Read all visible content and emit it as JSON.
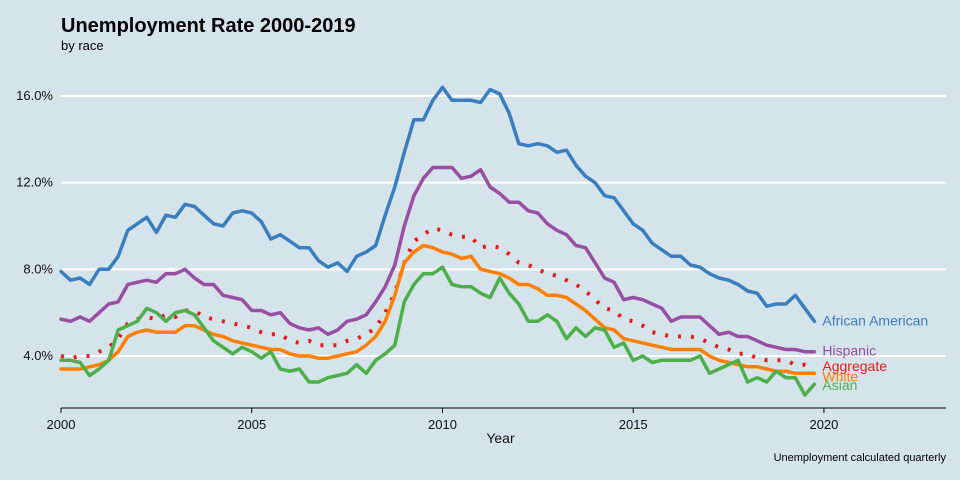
{
  "chart_data": {
    "type": "line",
    "title": "Unemployment Rate 2000-2019",
    "subtitle": "by race",
    "caption": "Unemployment calculated quarterly",
    "xlabel": "Year",
    "ylabel": "",
    "xlim": [
      2000,
      2023.2
    ],
    "ylim": [
      1.6,
      17.2
    ],
    "x_ticks": [
      2000,
      2005,
      2010,
      2015,
      2020
    ],
    "x_tick_labels": [
      "2000",
      "2005",
      "2010",
      "2015",
      "2020"
    ],
    "y_ticks": [
      4,
      8,
      12,
      16
    ],
    "y_tick_labels": [
      "4.0%",
      "8.0%",
      "12.0%",
      "16.0%"
    ],
    "grid": "horizontal",
    "legend": "direct labels at right end of lines",
    "series": [
      {
        "name": "African American",
        "color": "#3a7ebf",
        "style": "solid",
        "x": [
          2000.0,
          2000.25,
          2000.5,
          2000.75,
          2001.0,
          2001.25,
          2001.5,
          2001.75,
          2002.0,
          2002.25,
          2002.5,
          2002.75,
          2003.0,
          2003.25,
          2003.5,
          2003.75,
          2004.0,
          2004.25,
          2004.5,
          2004.75,
          2005.0,
          2005.25,
          2005.5,
          2005.75,
          2006.0,
          2006.25,
          2006.5,
          2006.75,
          2007.0,
          2007.25,
          2007.5,
          2007.75,
          2008.0,
          2008.25,
          2008.5,
          2008.75,
          2009.0,
          2009.25,
          2009.5,
          2009.75,
          2010.0,
          2010.25,
          2010.5,
          2010.75,
          2011.0,
          2011.25,
          2011.5,
          2011.75,
          2012.0,
          2012.25,
          2012.5,
          2012.75,
          2013.0,
          2013.25,
          2013.5,
          2013.75,
          2014.0,
          2014.25,
          2014.5,
          2014.75,
          2015.0,
          2015.25,
          2015.5,
          2015.75,
          2016.0,
          2016.25,
          2016.5,
          2016.75,
          2017.0,
          2017.25,
          2017.5,
          2017.75,
          2018.0,
          2018.25,
          2018.5,
          2018.75,
          2019.0,
          2019.25,
          2019.5,
          2019.75
        ],
        "y": [
          7.9,
          7.5,
          7.6,
          7.3,
          8.0,
          8.0,
          8.6,
          9.8,
          10.1,
          10.4,
          9.7,
          10.5,
          10.4,
          11.0,
          10.9,
          10.5,
          10.1,
          10.0,
          10.6,
          10.7,
          10.6,
          10.2,
          9.4,
          9.6,
          9.3,
          9.0,
          9.0,
          8.4,
          8.1,
          8.3,
          7.9,
          8.6,
          8.8,
          9.1,
          10.5,
          11.8,
          13.4,
          14.9,
          14.9,
          15.8,
          16.4,
          15.8,
          15.8,
          15.8,
          15.7,
          16.3,
          16.1,
          15.2,
          13.8,
          13.7,
          13.8,
          13.7,
          13.4,
          13.5,
          12.8,
          12.3,
          12.0,
          11.4,
          11.3,
          10.7,
          10.1,
          9.8,
          9.2,
          8.9,
          8.6,
          8.6,
          8.2,
          8.1,
          7.8,
          7.6,
          7.5,
          7.3,
          7.0,
          6.9,
          6.3,
          6.4,
          6.4,
          6.8,
          6.2,
          5.6
        ]
      },
      {
        "name": "Hispanic",
        "color": "#984ea3",
        "style": "solid",
        "x": [
          2000.0,
          2000.25,
          2000.5,
          2000.75,
          2001.0,
          2001.25,
          2001.5,
          2001.75,
          2002.0,
          2002.25,
          2002.5,
          2002.75,
          2003.0,
          2003.25,
          2003.5,
          2003.75,
          2004.0,
          2004.25,
          2004.5,
          2004.75,
          2005.0,
          2005.25,
          2005.5,
          2005.75,
          2006.0,
          2006.25,
          2006.5,
          2006.75,
          2007.0,
          2007.25,
          2007.5,
          2007.75,
          2008.0,
          2008.25,
          2008.5,
          2008.75,
          2009.0,
          2009.25,
          2009.5,
          2009.75,
          2010.0,
          2010.25,
          2010.5,
          2010.75,
          2011.0,
          2011.25,
          2011.5,
          2011.75,
          2012.0,
          2012.25,
          2012.5,
          2012.75,
          2013.0,
          2013.25,
          2013.5,
          2013.75,
          2014.0,
          2014.25,
          2014.5,
          2014.75,
          2015.0,
          2015.25,
          2015.5,
          2015.75,
          2016.0,
          2016.25,
          2016.5,
          2016.75,
          2017.0,
          2017.25,
          2017.5,
          2017.75,
          2018.0,
          2018.25,
          2018.5,
          2018.75,
          2019.0,
          2019.25,
          2019.5,
          2019.75
        ],
        "y": [
          5.7,
          5.6,
          5.8,
          5.6,
          6.0,
          6.4,
          6.5,
          7.3,
          7.4,
          7.5,
          7.4,
          7.8,
          7.8,
          8.0,
          7.6,
          7.3,
          7.3,
          6.8,
          6.7,
          6.6,
          6.1,
          6.1,
          5.9,
          6.0,
          5.5,
          5.3,
          5.2,
          5.3,
          5.0,
          5.2,
          5.6,
          5.7,
          5.9,
          6.5,
          7.2,
          8.2,
          10.0,
          11.4,
          12.2,
          12.7,
          12.7,
          12.7,
          12.2,
          12.3,
          12.6,
          11.8,
          11.5,
          11.1,
          11.1,
          10.7,
          10.6,
          10.1,
          9.8,
          9.6,
          9.1,
          9.0,
          8.3,
          7.6,
          7.4,
          6.6,
          6.7,
          6.6,
          6.4,
          6.2,
          5.6,
          5.8,
          5.8,
          5.8,
          5.4,
          5.0,
          5.1,
          4.9,
          4.9,
          4.7,
          4.5,
          4.4,
          4.3,
          4.3,
          4.2,
          4.2
        ]
      },
      {
        "name": "Aggregate",
        "color": "#e41a1c",
        "style": "dotted",
        "x": [
          2000.0,
          2000.25,
          2000.5,
          2000.75,
          2001.0,
          2001.25,
          2001.5,
          2001.75,
          2002.0,
          2002.25,
          2002.5,
          2002.75,
          2003.0,
          2003.25,
          2003.5,
          2003.75,
          2004.0,
          2004.25,
          2004.5,
          2004.75,
          2005.0,
          2005.25,
          2005.5,
          2005.75,
          2006.0,
          2006.25,
          2006.5,
          2006.75,
          2007.0,
          2007.25,
          2007.5,
          2007.75,
          2008.0,
          2008.25,
          2008.5,
          2008.75,
          2009.0,
          2009.25,
          2009.5,
          2009.75,
          2010.0,
          2010.25,
          2010.5,
          2010.75,
          2011.0,
          2011.25,
          2011.5,
          2011.75,
          2012.0,
          2012.25,
          2012.5,
          2012.75,
          2013.0,
          2013.25,
          2013.5,
          2013.75,
          2014.0,
          2014.25,
          2014.5,
          2014.75,
          2015.0,
          2015.25,
          2015.5,
          2015.75,
          2016.0,
          2016.25,
          2016.5,
          2016.75,
          2017.0,
          2017.25,
          2017.5,
          2017.75,
          2018.0,
          2018.25,
          2018.5,
          2018.75,
          2019.0,
          2019.25,
          2019.5,
          2019.75
        ],
        "y": [
          4.0,
          3.9,
          4.0,
          4.0,
          4.2,
          4.4,
          4.8,
          5.5,
          5.7,
          5.8,
          5.7,
          5.9,
          5.8,
          6.1,
          6.1,
          5.8,
          5.7,
          5.6,
          5.5,
          5.4,
          5.3,
          5.1,
          5.0,
          5.0,
          4.7,
          4.6,
          4.7,
          4.5,
          4.5,
          4.5,
          4.7,
          4.8,
          5.0,
          5.3,
          6.0,
          6.9,
          8.3,
          9.3,
          9.6,
          9.9,
          9.8,
          9.6,
          9.5,
          9.5,
          9.0,
          9.1,
          9.0,
          8.7,
          8.3,
          8.2,
          8.0,
          7.8,
          7.7,
          7.5,
          7.3,
          7.0,
          6.6,
          6.2,
          6.1,
          5.7,
          5.6,
          5.4,
          5.1,
          5.0,
          4.9,
          4.9,
          4.9,
          4.8,
          4.6,
          4.4,
          4.3,
          4.1,
          4.1,
          3.9,
          3.8,
          3.8,
          3.8,
          3.6,
          3.6,
          3.5
        ]
      },
      {
        "name": "White",
        "color": "#ff7f00",
        "style": "solid",
        "x": [
          2000.0,
          2000.25,
          2000.5,
          2000.75,
          2001.0,
          2001.25,
          2001.5,
          2001.75,
          2002.0,
          2002.25,
          2002.5,
          2002.75,
          2003.0,
          2003.25,
          2003.5,
          2003.75,
          2004.0,
          2004.25,
          2004.5,
          2004.75,
          2005.0,
          2005.25,
          2005.5,
          2005.75,
          2006.0,
          2006.25,
          2006.5,
          2006.75,
          2007.0,
          2007.25,
          2007.5,
          2007.75,
          2008.0,
          2008.25,
          2008.5,
          2008.75,
          2009.0,
          2009.25,
          2009.5,
          2009.75,
          2010.0,
          2010.25,
          2010.5,
          2010.75,
          2011.0,
          2011.25,
          2011.5,
          2011.75,
          2012.0,
          2012.25,
          2012.5,
          2012.75,
          2013.0,
          2013.25,
          2013.5,
          2013.75,
          2014.0,
          2014.25,
          2014.5,
          2014.75,
          2015.0,
          2015.25,
          2015.5,
          2015.75,
          2016.0,
          2016.25,
          2016.5,
          2016.75,
          2017.0,
          2017.25,
          2017.5,
          2017.75,
          2018.0,
          2018.25,
          2018.5,
          2018.75,
          2019.0,
          2019.25,
          2019.5,
          2019.75
        ],
        "y": [
          3.4,
          3.4,
          3.4,
          3.5,
          3.6,
          3.8,
          4.2,
          4.9,
          5.1,
          5.2,
          5.1,
          5.1,
          5.1,
          5.4,
          5.4,
          5.2,
          5.0,
          4.9,
          4.7,
          4.6,
          4.5,
          4.4,
          4.3,
          4.3,
          4.1,
          4.0,
          4.0,
          3.9,
          3.9,
          4.0,
          4.1,
          4.2,
          4.5,
          4.9,
          5.6,
          6.8,
          8.3,
          8.8,
          9.1,
          9.0,
          8.8,
          8.7,
          8.5,
          8.6,
          8.0,
          7.9,
          7.8,
          7.6,
          7.3,
          7.3,
          7.1,
          6.8,
          6.8,
          6.7,
          6.4,
          6.1,
          5.7,
          5.3,
          5.2,
          4.8,
          4.7,
          4.6,
          4.5,
          4.4,
          4.3,
          4.3,
          4.3,
          4.3,
          4.0,
          3.8,
          3.7,
          3.6,
          3.5,
          3.5,
          3.4,
          3.3,
          3.3,
          3.2,
          3.2,
          3.2
        ]
      },
      {
        "name": "Asian",
        "color": "#4daf4a",
        "style": "solid",
        "x": [
          2000.0,
          2000.25,
          2000.5,
          2000.75,
          2001.0,
          2001.25,
          2001.5,
          2001.75,
          2002.0,
          2002.25,
          2002.5,
          2002.75,
          2003.0,
          2003.25,
          2003.5,
          2003.75,
          2004.0,
          2004.25,
          2004.5,
          2004.75,
          2005.0,
          2005.25,
          2005.5,
          2005.75,
          2006.0,
          2006.25,
          2006.5,
          2006.75,
          2007.0,
          2007.25,
          2007.5,
          2007.75,
          2008.0,
          2008.25,
          2008.5,
          2008.75,
          2009.0,
          2009.25,
          2009.5,
          2009.75,
          2010.0,
          2010.25,
          2010.5,
          2010.75,
          2011.0,
          2011.25,
          2011.5,
          2011.75,
          2012.0,
          2012.25,
          2012.5,
          2012.75,
          2013.0,
          2013.25,
          2013.5,
          2013.75,
          2014.0,
          2014.25,
          2014.5,
          2014.75,
          2015.0,
          2015.25,
          2015.5,
          2015.75,
          2016.0,
          2016.25,
          2016.5,
          2016.75,
          2017.0,
          2017.25,
          2017.5,
          2017.75,
          2018.0,
          2018.25,
          2018.5,
          2018.75,
          2019.0,
          2019.25,
          2019.5,
          2019.75
        ],
        "y": [
          3.8,
          3.8,
          3.7,
          3.1,
          3.4,
          3.8,
          5.2,
          5.4,
          5.6,
          6.2,
          6.0,
          5.6,
          6.0,
          6.1,
          5.9,
          5.3,
          4.7,
          4.4,
          4.1,
          4.4,
          4.2,
          3.9,
          4.2,
          3.4,
          3.3,
          3.4,
          2.8,
          2.8,
          3.0,
          3.1,
          3.2,
          3.6,
          3.2,
          3.8,
          4.1,
          4.5,
          6.5,
          7.3,
          7.8,
          7.8,
          8.1,
          7.3,
          7.2,
          7.2,
          6.9,
          6.7,
          7.6,
          6.9,
          6.4,
          5.6,
          5.6,
          5.9,
          5.6,
          4.8,
          5.3,
          4.9,
          5.3,
          5.2,
          4.4,
          4.6,
          3.8,
          4.0,
          3.7,
          3.8,
          3.8,
          3.8,
          3.8,
          4.0,
          3.2,
          3.4,
          3.6,
          3.8,
          2.8,
          3.0,
          2.8,
          3.3,
          3.0,
          3.0,
          2.2,
          2.7
        ]
      }
    ]
  }
}
